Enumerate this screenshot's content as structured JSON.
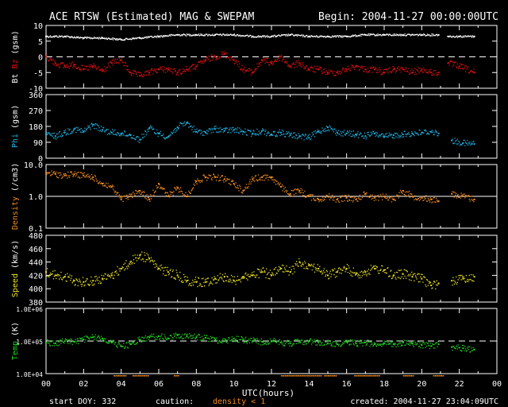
{
  "header": {
    "title": "ACE RTSW (Estimated) MAG & SWEPAM",
    "begin": "Begin: 2004-11-27 00:00:00UTC"
  },
  "footer": {
    "start_doy": "start DOY: 332",
    "caution": "caution:",
    "density_note": "density < 1",
    "created": "created: 2004-11-27 23:04:09UTC"
  },
  "colors": {
    "bt": "#ffffff",
    "bz": "#e01010",
    "phi": "#20b0e0",
    "density": "#f08a20",
    "speed": "#e8e020",
    "temp": "#20d020",
    "caution": "#f08a20"
  },
  "chart_data": [
    {
      "type": "scatter",
      "panel": "mag",
      "ylabel_a": "Bt",
      "ylabel_b": "Bz",
      "ylabel_c": "(gsm)",
      "ylim": [
        -10,
        10
      ],
      "yticks": [
        "10",
        "5",
        "0",
        "-5",
        "-10"
      ],
      "reference_line": 0,
      "series": [
        {
          "x": [
            0,
            1,
            2,
            3,
            4,
            5,
            6,
            7,
            8,
            9,
            10,
            11,
            12,
            13,
            14,
            15,
            16,
            17,
            18,
            19,
            20,
            20.9,
            21.4,
            22,
            22.8
          ],
          "values": [
            6.5,
            6.5,
            6,
            6,
            5.5,
            6,
            6.5,
            7,
            7,
            7,
            7,
            6.5,
            6.5,
            7,
            6.5,
            6.5,
            6.5,
            7,
            7,
            7,
            7,
            7,
            6.5,
            6.5,
            6.5
          ]
        },
        {
          "x": [
            0,
            0.5,
            1,
            1.5,
            2,
            2.5,
            3,
            3.5,
            4,
            4.5,
            5,
            5.5,
            6,
            6.5,
            7,
            7.5,
            8,
            8.5,
            9,
            9.5,
            10,
            10.5,
            11,
            11.5,
            12,
            12.5,
            13,
            13.5,
            14,
            14.5,
            15,
            15.5,
            16,
            16.5,
            17,
            17.5,
            18,
            18.5,
            19,
            19.5,
            20,
            20.5,
            20.9,
            21.4,
            22,
            22.8
          ],
          "values": [
            0,
            -2,
            -3,
            -2.5,
            -4,
            -3,
            -4.5,
            -2,
            -1,
            -5,
            -6,
            -5,
            -4,
            -4,
            -5,
            -4,
            -3,
            -1,
            0,
            1,
            -1,
            -4,
            -5,
            -1,
            -2,
            0,
            -3,
            -2,
            -4,
            -4,
            -5,
            -5,
            -4,
            -3,
            -4,
            -4,
            -5,
            -4,
            -4,
            -5,
            -4,
            -5,
            -5,
            -2,
            -3,
            -5
          ]
        }
      ]
    },
    {
      "type": "scatter",
      "panel": "phi",
      "ylabel_a": "Phi",
      "ylabel_c": "(gsm)",
      "ylim": [
        0,
        360
      ],
      "yticks": [
        "360",
        "270",
        "180",
        "90",
        "0"
      ],
      "series": [
        {
          "x": [
            0,
            0.5,
            1,
            1.5,
            2,
            2.5,
            3,
            3.5,
            4,
            4.5,
            5,
            5.5,
            6,
            6.5,
            7,
            7.5,
            8,
            8.5,
            9,
            9.5,
            10,
            10.5,
            11,
            11.5,
            12,
            12.5,
            13,
            13.5,
            14,
            14.5,
            15,
            15.5,
            16,
            16.5,
            17,
            17.5,
            18,
            18.5,
            19,
            19.5,
            20,
            20.5,
            20.9,
            21.6,
            22.2,
            22.8
          ],
          "values": [
            135,
            125,
            145,
            165,
            150,
            190,
            160,
            145,
            140,
            130,
            105,
            170,
            140,
            120,
            175,
            200,
            150,
            145,
            165,
            155,
            160,
            150,
            140,
            155,
            135,
            145,
            130,
            125,
            115,
            150,
            175,
            145,
            140,
            135,
            125,
            140,
            120,
            130,
            135,
            140,
            145,
            150,
            140,
            100,
            85,
            80
          ]
        }
      ]
    },
    {
      "type": "scatter",
      "panel": "density",
      "scale": "log",
      "ylabel_a": "Density",
      "ylabel_c": "(/cm3)",
      "ylim": [
        0.1,
        10
      ],
      "yticks": [
        "10.0",
        "1.0",
        "0.1"
      ],
      "reference_line": 1,
      "series": [
        {
          "x": [
            0,
            0.5,
            1,
            1.5,
            2,
            2.5,
            3,
            3.5,
            4,
            4.5,
            5,
            5.5,
            6,
            6.5,
            7,
            7.5,
            8,
            8.5,
            9,
            9.5,
            10,
            10.5,
            11,
            11.5,
            12,
            12.5,
            13,
            13.5,
            14,
            14.5,
            15,
            15.5,
            16,
            16.5,
            17,
            17.5,
            18,
            18.5,
            19,
            19.5,
            20,
            20.5,
            20.9,
            21.6,
            22.2,
            22.8
          ],
          "values": [
            5.5,
            5,
            4.5,
            5,
            4.5,
            4,
            2.5,
            2,
            0.8,
            1,
            1.5,
            0.8,
            2.5,
            1,
            1.8,
            1,
            3,
            4,
            4,
            3.5,
            2.5,
            1.5,
            3.5,
            4,
            4,
            2,
            1.2,
            1.5,
            1,
            0.8,
            1,
            0.8,
            0.9,
            0.8,
            1.2,
            0.9,
            1,
            0.8,
            1.5,
            1,
            0.9,
            0.8,
            0.7,
            1.2,
            1,
            0.8
          ]
        }
      ]
    },
    {
      "type": "scatter",
      "panel": "speed",
      "ylabel_a": "Speed",
      "ylabel_c": "(km/s)",
      "ylim": [
        380,
        480
      ],
      "yticks": [
        "480",
        "460",
        "440",
        "420",
        "400",
        "380"
      ],
      "series": [
        {
          "x": [
            0,
            0.5,
            1,
            1.5,
            2,
            2.5,
            3,
            3.5,
            4,
            4.5,
            5,
            5.5,
            6,
            6.5,
            7,
            7.5,
            8,
            8.5,
            9,
            9.5,
            10,
            10.5,
            11,
            11.5,
            12,
            12.5,
            13,
            13.5,
            14,
            14.5,
            15,
            15.5,
            16,
            16.5,
            17,
            17.5,
            18,
            18.5,
            19,
            19.5,
            20,
            20.5,
            20.9,
            21.6,
            22.2,
            22.8
          ],
          "values": [
            425,
            420,
            418,
            412,
            410,
            412,
            415,
            420,
            430,
            440,
            450,
            445,
            430,
            425,
            420,
            412,
            410,
            410,
            415,
            418,
            412,
            418,
            420,
            425,
            420,
            430,
            425,
            440,
            435,
            430,
            420,
            425,
            430,
            422,
            425,
            430,
            428,
            420,
            422,
            418,
            415,
            405,
            408,
            412,
            415,
            418
          ]
        }
      ]
    },
    {
      "type": "scatter",
      "panel": "temp",
      "scale": "log",
      "ylabel_a": "Temp",
      "ylabel_c": "(K)",
      "ylim": [
        10000,
        1000000
      ],
      "yticks": [
        "1.0E+06",
        "1.0E+05",
        "1.0E+04"
      ],
      "reference_line": 100000,
      "series": [
        {
          "x": [
            0,
            0.5,
            1,
            1.5,
            2,
            2.5,
            3,
            3.5,
            4,
            4.5,
            5,
            5.5,
            6,
            6.5,
            7,
            7.5,
            8,
            8.5,
            9,
            9.5,
            10,
            10.5,
            11,
            11.5,
            12,
            12.5,
            13,
            13.5,
            14,
            14.5,
            15,
            15.5,
            16,
            16.5,
            17,
            17.5,
            18,
            18.5,
            19,
            19.5,
            20,
            20.5,
            20.9,
            21.6,
            22.2,
            22.8
          ],
          "values": [
            90000,
            85000,
            100000,
            95000,
            110000,
            130000,
            120000,
            90000,
            70000,
            80000,
            110000,
            130000,
            140000,
            120000,
            150000,
            140000,
            130000,
            125000,
            110000,
            100000,
            120000,
            110000,
            100000,
            95000,
            100000,
            90000,
            85000,
            95000,
            100000,
            90000,
            85000,
            80000,
            95000,
            85000,
            90000,
            80000,
            85000,
            80000,
            90000,
            85000,
            75000,
            70000,
            80000,
            65000,
            60000,
            55000
          ]
        }
      ]
    },
    {
      "type": "axis",
      "xlabel": "UTC(hours)",
      "xlim": [
        0,
        24
      ],
      "xticks": [
        "00",
        "02",
        "04",
        "06",
        "08",
        "10",
        "12",
        "14",
        "16",
        "18",
        "20",
        "22",
        "00"
      ],
      "caution_ranges": [
        [
          3.6,
          4.2
        ],
        [
          4.6,
          5.4
        ],
        [
          6.8,
          7.0
        ],
        [
          12.5,
          14.6
        ],
        [
          14.8,
          15.4
        ],
        [
          16.4,
          17.8
        ],
        [
          19.0,
          19.6
        ],
        [
          20.6,
          21.2
        ]
      ]
    }
  ]
}
